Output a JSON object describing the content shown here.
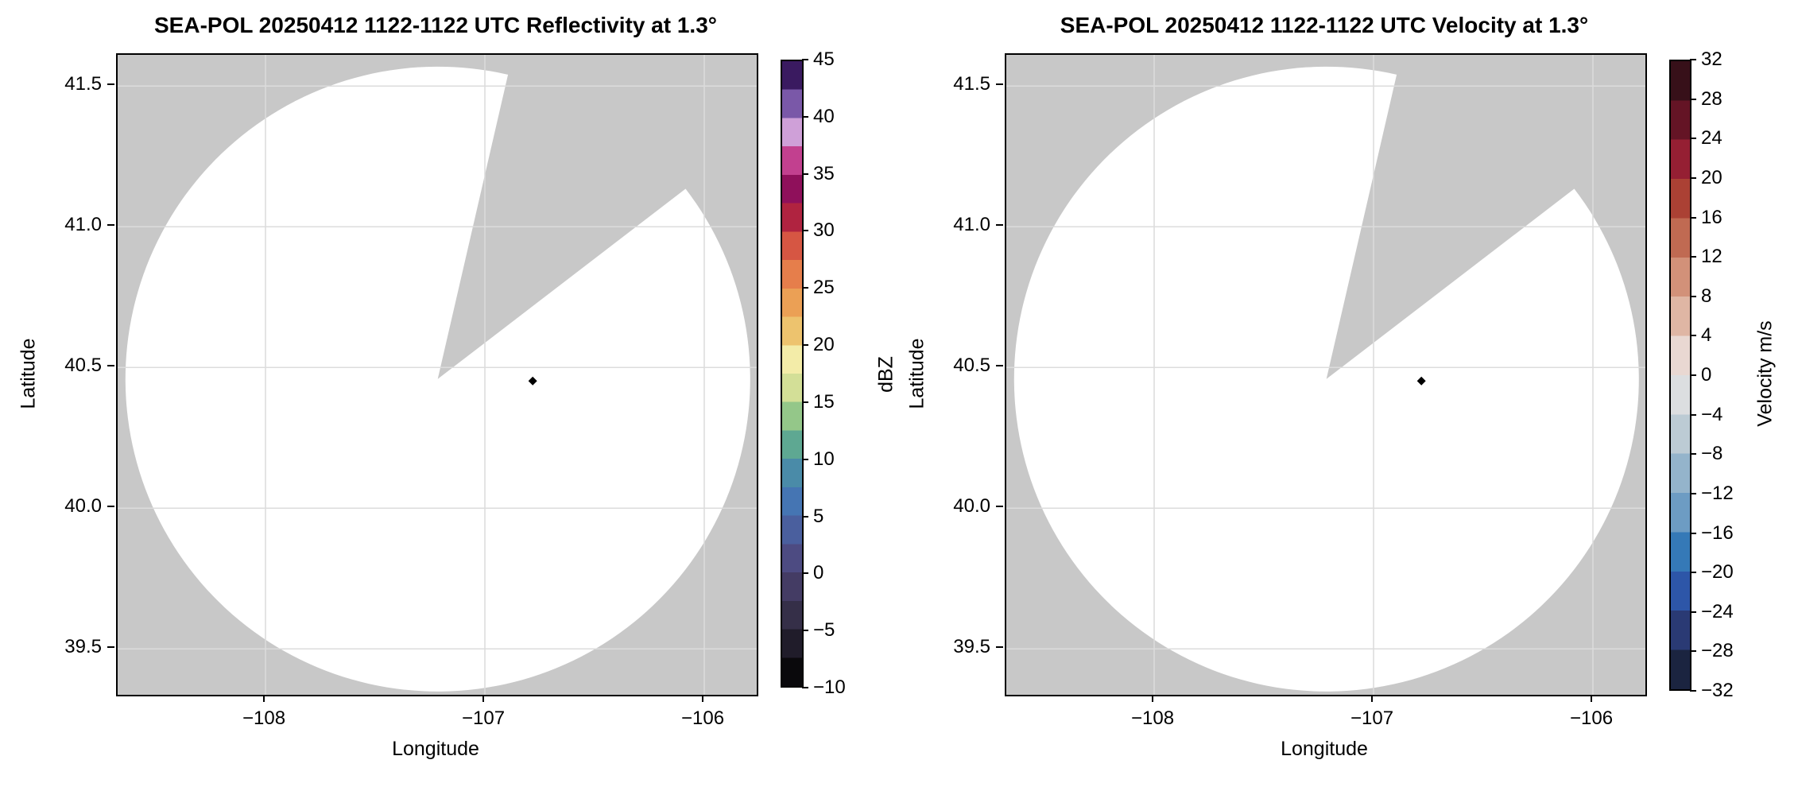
{
  "figure": {
    "description": "Two-panel radar PPI display: reflectivity (left) and radial velocity (right), both fields empty (no echoes) over white coverage circle with one blanked sector on gray no-data background"
  },
  "colors": {
    "background": "#ffffff",
    "no_data_gray": "#c8c8c8",
    "coverage_fill": "#ffffff",
    "gridline": "#dcdcdc",
    "axis": "#000000",
    "marker": "#000000"
  },
  "chart_data": [
    {
      "type": "radar_ppi",
      "field": "Reflectivity",
      "title": "SEA-POL 20250412 1122-1122 UTC Reflectivity at 1.3°",
      "xlabel": "Longitude",
      "ylabel": "Latitude",
      "xlim": [
        -108.674,
        -105.761
      ],
      "ylim": [
        39.337,
        41.611
      ],
      "x_ticks": [
        -108,
        -107,
        -106
      ],
      "y_ticks": [
        41.5,
        41.0,
        40.5,
        40.0,
        39.5
      ],
      "grid": true,
      "radar": {
        "lon": -107.215,
        "lat": 40.459,
        "coverage_radius_deg_lon": 1.424,
        "blanked_sector_azimuth_deg": [
          13,
          52.5
        ]
      },
      "marker": {
        "shape": "diamond",
        "lon": -106.782,
        "lat": 40.452
      },
      "echoes": "none",
      "colorbar": {
        "label": "dBZ",
        "vmin": -10,
        "vmax": 45,
        "ticks": [
          45,
          40,
          35,
          30,
          25,
          20,
          15,
          10,
          5,
          0,
          -5,
          -10
        ],
        "colors_bottom_to_top": [
          "#0a090c",
          "#201c2a",
          "#352f48",
          "#443c64",
          "#4d4b82",
          "#4a5f9e",
          "#4575b3",
          "#4a8ba8",
          "#5ea892",
          "#94c789",
          "#d3df97",
          "#f3eca8",
          "#edc36e",
          "#eba055",
          "#e67e4b",
          "#d65643",
          "#b02340",
          "#8f105b",
          "#c2408f",
          "#cfa0d8",
          "#7a58a8",
          "#3a1a60"
        ]
      }
    },
    {
      "type": "radar_ppi",
      "field": "Velocity",
      "title": "SEA-POL 20250412 1122-1122 UTC Velocity at 1.3°",
      "xlabel": "Longitude",
      "ylabel": "Latitude",
      "xlim": [
        -108.674,
        -105.761
      ],
      "ylim": [
        39.337,
        41.611
      ],
      "x_ticks": [
        -108,
        -107,
        -106
      ],
      "y_ticks": [
        41.5,
        41.0,
        40.5,
        40.0,
        39.5
      ],
      "grid": true,
      "radar": {
        "lon": -107.215,
        "lat": 40.459,
        "coverage_radius_deg_lon": 1.424,
        "blanked_sector_azimuth_deg": [
          13,
          52.5
        ]
      },
      "marker": {
        "shape": "diamond",
        "lon": -106.782,
        "lat": 40.452
      },
      "echoes": "none",
      "colorbar": {
        "label": "Velocity m/s",
        "vmin": -32,
        "vmax": 32,
        "ticks": [
          32,
          28,
          24,
          20,
          16,
          12,
          8,
          4,
          0,
          -4,
          -8,
          -12,
          -16,
          -20,
          -24,
          -28,
          -32
        ],
        "colors_bottom_to_top": [
          "#1b2440",
          "#2a3a74",
          "#2d56a8",
          "#3579b7",
          "#6d9cc3",
          "#94b4cb",
          "#bccbd4",
          "#dcdee0",
          "#e9d8d2",
          "#dfb6a4",
          "#d29179",
          "#c06a52",
          "#ab4134",
          "#951f33",
          "#641425",
          "#371019"
        ]
      }
    }
  ],
  "layout_note_values": {
    "panel_count": 2
  }
}
